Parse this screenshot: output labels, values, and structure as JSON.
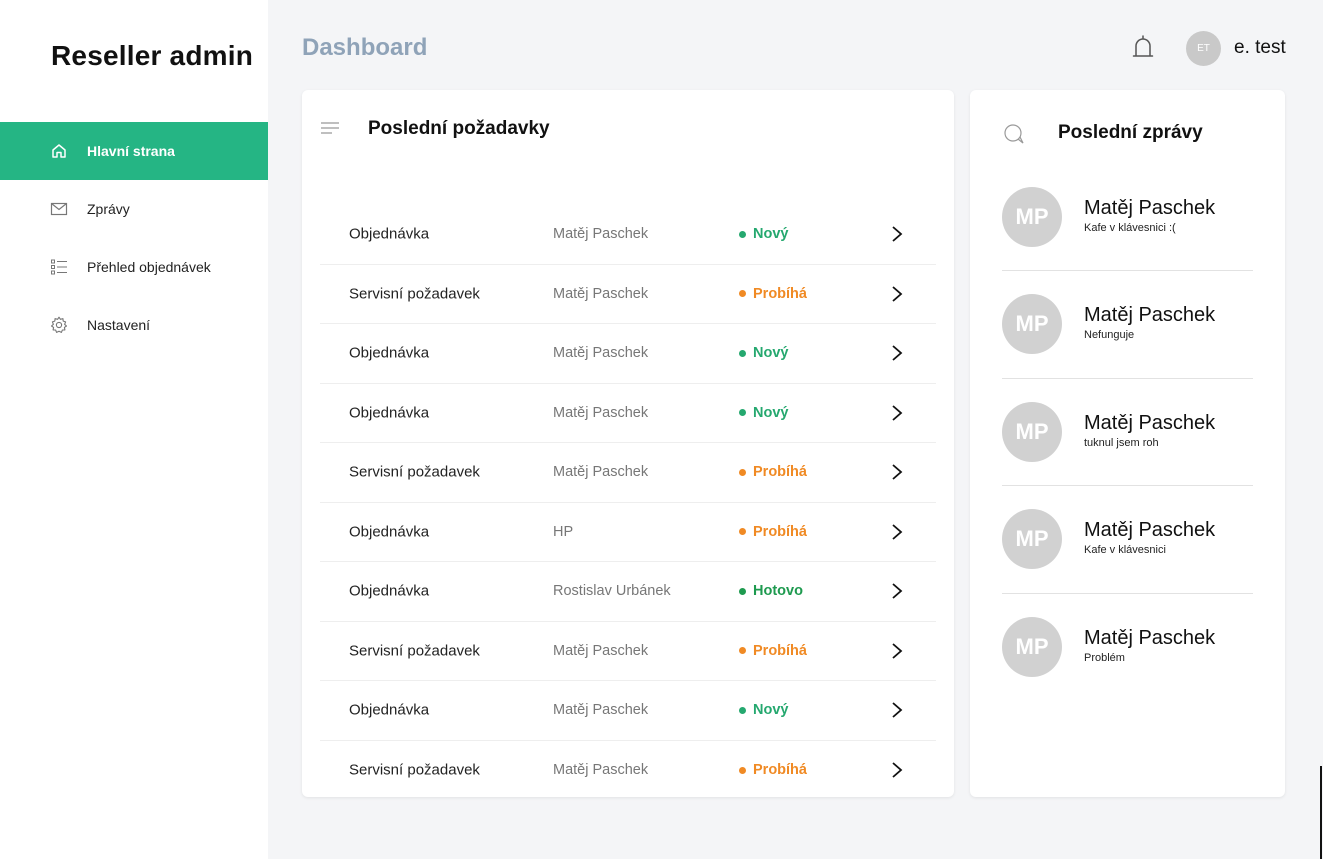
{
  "sidebar": {
    "brand": "Reseller admin",
    "items": [
      {
        "label": "Hlavní strana",
        "icon": "home-icon",
        "active": true
      },
      {
        "label": "Zprávy",
        "icon": "mail-icon",
        "active": false
      },
      {
        "label": "Přehled objednávek",
        "icon": "list-icon",
        "active": false
      },
      {
        "label": "Nastavení",
        "icon": "gear-icon",
        "active": false
      }
    ]
  },
  "header": {
    "title": "Dashboard",
    "avatar_initials": "ET",
    "user_name": "e. test"
  },
  "requests": {
    "title": "Poslední požadavky",
    "rows": [
      {
        "type": "Objednávka",
        "name": "Matěj Paschek",
        "status": "Nový",
        "status_color": "#25a86f"
      },
      {
        "type": "Servisní požadavek",
        "name": "Matěj Paschek",
        "status": "Probíhá",
        "status_color": "#f08a24"
      },
      {
        "type": "Objednávka",
        "name": "Matěj Paschek",
        "status": "Nový",
        "status_color": "#25a86f"
      },
      {
        "type": "Objednávka",
        "name": "Matěj Paschek",
        "status": "Nový",
        "status_color": "#25a86f"
      },
      {
        "type": "Servisní požadavek",
        "name": "Matěj Paschek",
        "status": "Probíhá",
        "status_color": "#f08a24"
      },
      {
        "type": "Objednávka",
        "name": "HP",
        "status": "Probíhá",
        "status_color": "#f08a24"
      },
      {
        "type": "Objednávka",
        "name": "Rostislav Urbánek",
        "status": "Hotovo",
        "status_color": "#1e9a4f"
      },
      {
        "type": "Servisní požadavek",
        "name": "Matěj Paschek",
        "status": "Probíhá",
        "status_color": "#f08a24"
      },
      {
        "type": "Objednávka",
        "name": "Matěj Paschek",
        "status": "Nový",
        "status_color": "#25a86f"
      },
      {
        "type": "Servisní požadavek",
        "name": "Matěj Paschek",
        "status": "Probíhá",
        "status_color": "#f08a24"
      }
    ]
  },
  "messages": {
    "title": "Poslední zprávy",
    "items": [
      {
        "initials": "MP",
        "name": "Matěj Paschek",
        "text": "Kafe v klávesnici :("
      },
      {
        "initials": "MP",
        "name": "Matěj Paschek",
        "text": "Nefunguje"
      },
      {
        "initials": "MP",
        "name": "Matěj Paschek",
        "text": "tuknul jsem roh"
      },
      {
        "initials": "MP",
        "name": "Matěj Paschek",
        "text": "Kafe v klávesnici"
      },
      {
        "initials": "MP",
        "name": "Matěj Paschek",
        "text": "Problém"
      }
    ]
  },
  "colors": {
    "accent": "#25b584",
    "title_muted": "#8fa3b8"
  }
}
